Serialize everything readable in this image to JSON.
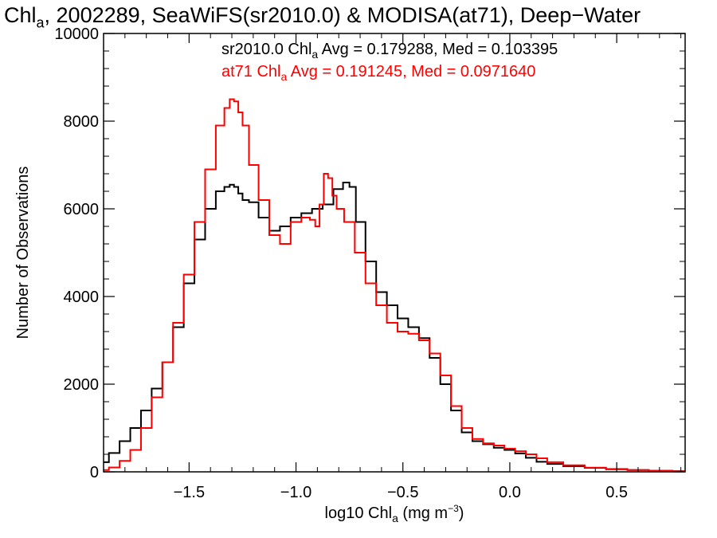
{
  "chart_data": {
    "type": "line",
    "title_parts": {
      "main": "Chl",
      "sub": "a",
      "rest": ", 2002289, SeaWiFS(sr2010.0) & MODISA(at71), Deep−Water"
    },
    "xlabel_parts": {
      "main": "log10 Chl",
      "sub": "a",
      "unit": " (mg m",
      "sup": "−3",
      "close": ")"
    },
    "ylabel": "Number of Observations",
    "xlim": [
      -1.9,
      0.82
    ],
    "ylim": [
      0,
      10000
    ],
    "xticks": [
      -1.5,
      -1.0,
      -0.5,
      0.0,
      0.5
    ],
    "xtick_labels": [
      "−1.5",
      "−1.0",
      "−0.5",
      "0.0",
      "0.5"
    ],
    "yticks": [
      0,
      2000,
      4000,
      6000,
      8000,
      10000
    ],
    "ytick_labels": [
      "0",
      "2000",
      "4000",
      "6000",
      "8000",
      "10000"
    ],
    "annotations": [
      {
        "prefix": "sr2010.0 Chl",
        "sub": "a",
        "suffix": " Avg = 0.179288, Med = 0.103395",
        "color": "#000000"
      },
      {
        "prefix": "at71 Chl",
        "sub": "a",
        "suffix": " Avg = 0.191245, Med = 0.0971640",
        "color": "#ff0000"
      }
    ],
    "series": [
      {
        "color": "#000000",
        "x": [
          -1.9,
          -1.85,
          -1.8,
          -1.75,
          -1.7,
          -1.65,
          -1.6,
          -1.55,
          -1.5,
          -1.45,
          -1.4,
          -1.35,
          -1.32,
          -1.3,
          -1.28,
          -1.26,
          -1.24,
          -1.2,
          -1.15,
          -1.1,
          -1.05,
          -1.0,
          -0.95,
          -0.9,
          -0.85,
          -0.8,
          -0.76,
          -0.74,
          -0.7,
          -0.65,
          -0.6,
          -0.55,
          -0.5,
          -0.45,
          -0.4,
          -0.35,
          -0.3,
          -0.25,
          -0.2,
          -0.15,
          -0.1,
          -0.05,
          0.0,
          0.05,
          0.1,
          0.15,
          0.2,
          0.3,
          0.4,
          0.5,
          0.6,
          0.7,
          0.82
        ],
        "y": [
          220,
          430,
          700,
          1000,
          1400,
          1900,
          2500,
          3300,
          4300,
          5300,
          6000,
          6400,
          6500,
          6550,
          6500,
          6350,
          6200,
          6150,
          5800,
          5500,
          5600,
          5800,
          5900,
          6000,
          6100,
          6450,
          6600,
          6500,
          5700,
          4800,
          4100,
          3800,
          3500,
          3300,
          3050,
          2600,
          2000,
          1400,
          900,
          700,
          630,
          550,
          500,
          420,
          320,
          230,
          180,
          130,
          90,
          60,
          40,
          25,
          15
        ]
      },
      {
        "color": "#ff0000",
        "x": [
          -1.9,
          -1.85,
          -1.8,
          -1.75,
          -1.7,
          -1.65,
          -1.6,
          -1.55,
          -1.5,
          -1.45,
          -1.4,
          -1.35,
          -1.32,
          -1.3,
          -1.28,
          -1.26,
          -1.24,
          -1.2,
          -1.15,
          -1.1,
          -1.05,
          -1.0,
          -0.95,
          -0.92,
          -0.9,
          -0.88,
          -0.86,
          -0.84,
          -0.82,
          -0.8,
          -0.75,
          -0.7,
          -0.65,
          -0.6,
          -0.55,
          -0.5,
          -0.45,
          -0.4,
          -0.35,
          -0.3,
          -0.25,
          -0.2,
          -0.15,
          -0.1,
          -0.05,
          0.0,
          0.05,
          0.1,
          0.15,
          0.2,
          0.3,
          0.4,
          0.5,
          0.6,
          0.7,
          0.82
        ],
        "y": [
          40,
          100,
          250,
          500,
          1000,
          1700,
          2500,
          3400,
          4500,
          5700,
          6900,
          7900,
          8300,
          8500,
          8450,
          8200,
          7900,
          7000,
          6200,
          5400,
          5200,
          5700,
          5800,
          5750,
          5600,
          6100,
          6800,
          6700,
          6300,
          6000,
          5700,
          5000,
          4300,
          3800,
          3400,
          3200,
          3150,
          3000,
          2700,
          2200,
          1500,
          1000,
          750,
          650,
          600,
          530,
          470,
          400,
          310,
          220,
          150,
          95,
          65,
          40,
          25,
          12
        ]
      }
    ]
  }
}
